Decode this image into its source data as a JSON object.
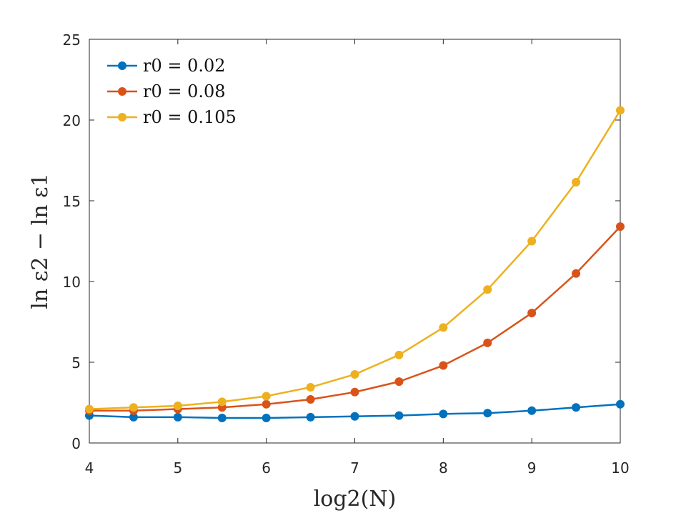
{
  "chart_data": {
    "type": "line",
    "title": "",
    "xlabel": "log2(N)",
    "ylabel": "ln ε2 − ln ε1",
    "xlim": [
      4,
      10
    ],
    "ylim": [
      0,
      25
    ],
    "x_ticks": [
      4,
      5,
      6,
      7,
      8,
      9,
      10
    ],
    "y_ticks": [
      0,
      5,
      10,
      15,
      20,
      25
    ],
    "x": [
      4,
      4.5,
      5,
      5.5,
      6,
      6.5,
      7,
      7.5,
      8,
      8.5,
      9,
      9.5,
      10
    ],
    "grid": false,
    "legend_position": "top-left",
    "series": [
      {
        "name": "r0 = 0.02",
        "color": "#0072BD",
        "values": [
          1.7,
          1.6,
          1.6,
          1.55,
          1.55,
          1.6,
          1.65,
          1.7,
          1.8,
          1.85,
          2.0,
          2.2,
          2.4
        ]
      },
      {
        "name": "r0 = 0.08",
        "color": "#D95319",
        "values": [
          2.0,
          2.0,
          2.1,
          2.2,
          2.4,
          2.7,
          3.15,
          3.8,
          4.8,
          6.2,
          8.05,
          10.5,
          13.4
        ]
      },
      {
        "name": "r0 = 0.105",
        "color": "#EDB120",
        "values": [
          2.1,
          2.2,
          2.3,
          2.55,
          2.9,
          3.45,
          4.25,
          5.45,
          7.15,
          9.5,
          12.5,
          16.15,
          20.6
        ]
      }
    ]
  }
}
